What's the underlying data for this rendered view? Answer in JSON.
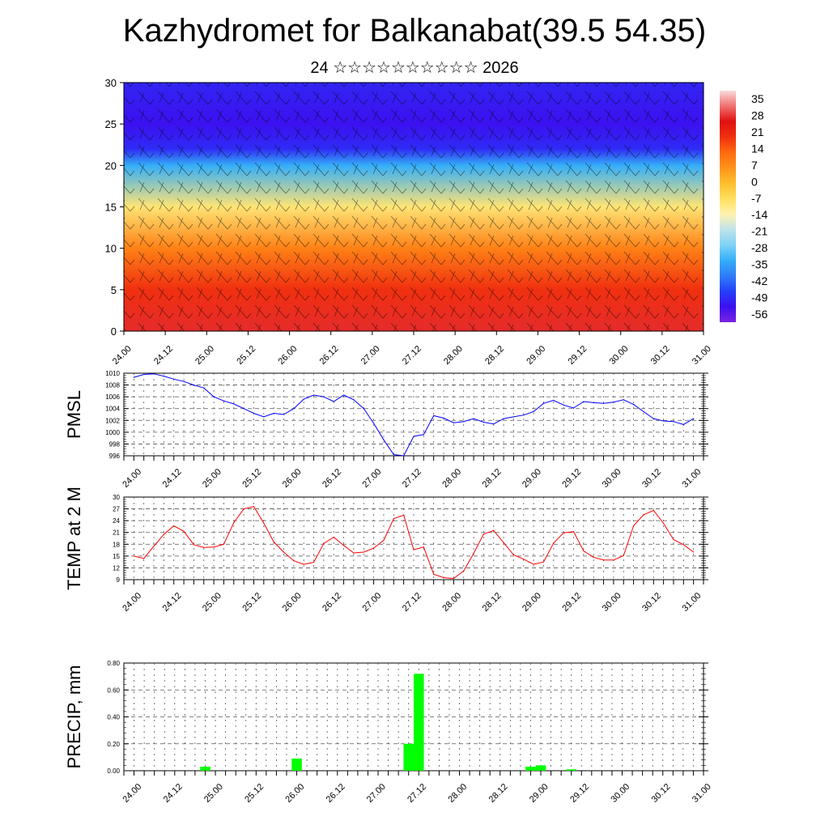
{
  "header": {
    "title": "Kazhydromet for Balkanabat(39.5 54.35)",
    "subtitle": "24 ☆☆☆☆☆☆☆☆☆☆ 2026"
  },
  "colors": {
    "pmsl_line": "#0000ff",
    "temp_line": "#ff0000",
    "precip_bar": "#00ff00",
    "grid": "#555555"
  },
  "time_ticks": [
    "24.00",
    "24.12",
    "25.00",
    "25.12",
    "26.00",
    "26.12",
    "27.00",
    "27.12",
    "28.00",
    "28.12",
    "29.00",
    "29.12",
    "30.00",
    "30.12",
    "31.00"
  ],
  "chart_data": [
    {
      "type": "heatmap",
      "name": "cross-section",
      "y_ticks": [
        "0",
        "5",
        "10",
        "15",
        "20",
        "25",
        "30"
      ],
      "ylim": [
        0,
        30
      ],
      "x_range_days": [
        24.0,
        31.0
      ],
      "colorbar_labels": [
        "35",
        "28",
        "21",
        "14",
        "7",
        "0",
        "-7",
        "-14",
        "-21",
        "-28",
        "-35",
        "-42",
        "-49",
        "-56"
      ],
      "colorbar_range": [
        -63,
        42
      ],
      "field_profile": [
        {
          "level": 0,
          "value": 30
        },
        {
          "level": 5,
          "value": 21
        },
        {
          "level": 10,
          "value": 10
        },
        {
          "level": 15,
          "value": -9
        },
        {
          "level": 20,
          "value": -35
        },
        {
          "level": 22,
          "value": -52
        },
        {
          "level": 25,
          "value": -56
        },
        {
          "level": 30,
          "value": -53
        }
      ],
      "wind_barbs": true
    },
    {
      "type": "line",
      "name": "PMSL",
      "ylabel": "PMSL",
      "ylim": [
        996,
        1010
      ],
      "y_ticks": [
        "996",
        "998",
        "1000",
        "1002",
        "1004",
        "1006",
        "1008",
        "1010"
      ],
      "x": [
        24.0,
        24.125,
        24.25,
        24.375,
        24.5,
        24.625,
        24.75,
        24.875,
        25.0,
        25.125,
        25.25,
        25.375,
        25.5,
        25.625,
        25.75,
        25.875,
        26.0,
        26.125,
        26.25,
        26.375,
        26.5,
        26.625,
        26.75,
        26.875,
        27.0,
        27.125,
        27.25,
        27.375,
        27.5,
        27.625,
        27.75,
        27.875,
        28.0,
        28.125,
        28.25,
        28.375,
        28.5,
        28.625,
        28.75,
        28.875,
        29.0,
        29.125,
        29.25,
        29.375,
        29.5,
        29.625,
        29.75,
        29.875,
        30.0,
        30.125,
        30.25,
        30.375,
        30.5,
        30.625,
        30.75,
        30.875,
        31.0
      ],
      "values": [
        1009.3,
        1009.8,
        1009.9,
        1009.5,
        1009.0,
        1008.6,
        1008.0,
        1007.5,
        1006.0,
        1005.3,
        1004.8,
        1004.0,
        1003.2,
        1002.6,
        1003.2,
        1003.0,
        1004.0,
        1005.6,
        1006.3,
        1006.0,
        1005.2,
        1006.3,
        1005.5,
        1004.0,
        1001.5,
        998.7,
        996.2,
        996.0,
        999.3,
        999.6,
        1002.8,
        1002.4,
        1001.6,
        1001.8,
        1002.3,
        1001.7,
        1001.4,
        1002.3,
        1002.6,
        1002.9,
        1003.5,
        1004.9,
        1005.4,
        1004.6,
        1004.1,
        1005.2,
        1005.0,
        1004.9,
        1005.1,
        1005.5,
        1004.7,
        1003.5,
        1002.3,
        1001.9,
        1001.8,
        1001.3,
        1002.3
      ]
    },
    {
      "type": "line",
      "name": "TEMP at 2 M",
      "ylabel": "TEMP at 2 M",
      "ylim": [
        9,
        30
      ],
      "y_ticks": [
        "9",
        "12",
        "15",
        "18",
        "21",
        "24",
        "27",
        "30"
      ],
      "x": [
        24.0,
        24.125,
        24.25,
        24.375,
        24.5,
        24.625,
        24.75,
        24.875,
        25.0,
        25.125,
        25.25,
        25.375,
        25.5,
        25.625,
        25.75,
        25.875,
        26.0,
        26.125,
        26.25,
        26.375,
        26.5,
        26.625,
        26.75,
        26.875,
        27.0,
        27.125,
        27.25,
        27.375,
        27.5,
        27.625,
        27.75,
        27.875,
        28.0,
        28.125,
        28.25,
        28.375,
        28.5,
        28.625,
        28.75,
        28.875,
        29.0,
        29.125,
        29.25,
        29.375,
        29.5,
        29.625,
        29.75,
        29.875,
        30.0,
        30.125,
        30.25,
        30.375,
        30.5,
        30.625,
        30.75,
        30.875,
        31.0
      ],
      "values": [
        15.0,
        14.4,
        17.5,
        20.5,
        22.7,
        21.3,
        17.9,
        17.2,
        17.3,
        18.0,
        23.5,
        27.0,
        27.6,
        23.4,
        18.6,
        16.0,
        13.8,
        12.9,
        13.4,
        18.2,
        19.8,
        17.7,
        15.8,
        16.0,
        17.0,
        19.0,
        24.5,
        25.4,
        16.6,
        17.3,
        10.4,
        9.5,
        9.3,
        11.2,
        15.7,
        20.6,
        21.5,
        18.4,
        15.3,
        14.2,
        12.9,
        13.5,
        18.3,
        20.9,
        21.2,
        16.3,
        14.7,
        14.0,
        14.0,
        15.1,
        22.7,
        25.5,
        26.6,
        23.3,
        19.2,
        17.9,
        16.0
      ]
    },
    {
      "type": "bar",
      "name": "PRECIP, mm",
      "ylabel": "PRECIP, mm",
      "ylim": [
        0,
        0.8
      ],
      "y_ticks": [
        "0.00",
        "0.20",
        "0.40",
        "0.60",
        "0.80"
      ],
      "bars": [
        {
          "x": 24.875,
          "value": 0.03
        },
        {
          "x": 26.0,
          "value": 0.09
        },
        {
          "x": 27.375,
          "value": 0.2
        },
        {
          "x": 27.5,
          "value": 0.72
        },
        {
          "x": 28.875,
          "value": 0.03
        },
        {
          "x": 29.0,
          "value": 0.04
        },
        {
          "x": 29.375,
          "value": 0.01
        }
      ]
    }
  ]
}
